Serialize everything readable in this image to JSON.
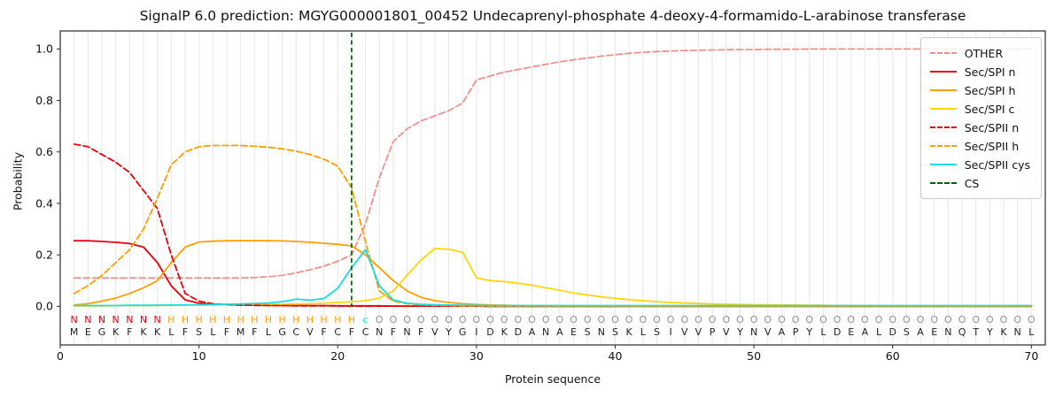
{
  "chart_data": {
    "type": "line",
    "title": "SignalP 6.0 prediction: MGYG000001801_00452 Undecaprenyl-phosphate 4-deoxy-4-formamido-L-arabinose transferase",
    "xlabel": "Protein sequence",
    "ylabel": "Probability",
    "xlim": [
      0,
      71
    ],
    "ylim": [
      -0.15,
      1.07
    ],
    "x_ticks": [
      0,
      10,
      20,
      30,
      40,
      50,
      60,
      70
    ],
    "y_ticks": [
      0.0,
      0.2,
      0.4,
      0.6,
      0.8,
      1.0
    ],
    "grid": "vertical-per-residue",
    "legend_position": "upper right",
    "sequence": "MEGKFKKLFSLFMFLGCVFCFCNFNFVYGIDKDANAESNSKLSIVVPVYNVAPYLDEALDSAENQTYKNL",
    "annotation": "NNNNNNNHHHHHHHHHHHHHHcOOOOOOOOOOOOOOOOOOOOOOOOOOOOOOOOOOOOOOOOOOOOOOOO",
    "annotation_colors": {
      "N": "#e8000d",
      "H": "#ff9f00",
      "c": "#17dddd",
      "O": "#8f8f8f"
    },
    "sequence_color": "#1f1f1f",
    "cs": {
      "label": "CS",
      "position": 21,
      "color": "#006400"
    },
    "style": {
      "grid_color": "#e7e7e7",
      "axis_color": "#2a2a2a",
      "annotation_y": -0.05,
      "sequence_y": -0.098
    },
    "series": [
      {
        "name": "OTHER",
        "color": "#f0908c",
        "dash": true,
        "values": [
          0.11,
          0.11,
          0.11,
          0.11,
          0.11,
          0.11,
          0.11,
          0.11,
          0.11,
          0.11,
          0.11,
          0.11,
          0.11,
          0.112,
          0.115,
          0.12,
          0.13,
          0.142,
          0.156,
          0.175,
          0.2,
          0.32,
          0.5,
          0.64,
          0.69,
          0.72,
          0.74,
          0.76,
          0.79,
          0.88,
          0.895,
          0.91,
          0.92,
          0.93,
          0.94,
          0.95,
          0.958,
          0.965,
          0.972,
          0.978,
          0.983,
          0.987,
          0.99,
          0.992,
          0.994,
          0.995,
          0.996,
          0.997,
          0.998,
          0.998,
          0.999,
          0.999,
          0.999,
          1.0,
          1.0,
          1.0,
          1.0,
          1.0,
          1.0,
          1.0,
          1.0,
          1.0,
          1.0,
          1.0,
          1.0,
          1.0,
          1.0,
          1.0,
          1.0,
          1.0
        ]
      },
      {
        "name": "Sec/SPI n",
        "color": "#e8000d",
        "dash": false,
        "values": [
          0.255,
          0.255,
          0.252,
          0.249,
          0.244,
          0.23,
          0.17,
          0.08,
          0.025,
          0.012,
          0.008,
          0.006,
          0.005,
          0.004,
          0.004,
          0.003,
          0.003,
          0.003,
          0.003,
          0.002,
          0.002,
          0.002,
          0.002,
          0.001,
          0.001,
          0.001,
          0.001,
          0.001,
          0.001,
          0.001,
          0,
          0,
          0,
          0,
          0,
          0,
          0,
          0,
          0,
          0,
          0,
          0,
          0,
          0,
          0,
          0,
          0,
          0,
          0,
          0,
          0,
          0,
          0,
          0,
          0,
          0,
          0,
          0,
          0,
          0,
          0,
          0,
          0,
          0,
          0,
          0,
          0,
          0,
          0,
          0
        ]
      },
      {
        "name": "Sec/SPI h",
        "color": "#ff9f00",
        "dash": false,
        "values": [
          0.005,
          0.01,
          0.02,
          0.032,
          0.05,
          0.072,
          0.1,
          0.17,
          0.23,
          0.25,
          0.253,
          0.255,
          0.255,
          0.255,
          0.255,
          0.254,
          0.252,
          0.249,
          0.245,
          0.241,
          0.235,
          0.2,
          0.15,
          0.1,
          0.06,
          0.035,
          0.022,
          0.015,
          0.01,
          0.007,
          0.005,
          0.004,
          0.003,
          0.002,
          0.002,
          0.001,
          0.001,
          0.001,
          0.001,
          0.001,
          0,
          0,
          0,
          0,
          0,
          0,
          0,
          0,
          0,
          0,
          0,
          0,
          0,
          0,
          0,
          0,
          0,
          0,
          0,
          0,
          0,
          0,
          0,
          0,
          0,
          0,
          0,
          0,
          0,
          0
        ]
      },
      {
        "name": "Sec/SPI c",
        "color": "#ffd60a",
        "dash": false,
        "values": [
          0.002,
          0.002,
          0.002,
          0.003,
          0.003,
          0.003,
          0.004,
          0.004,
          0.005,
          0.005,
          0.005,
          0.006,
          0.006,
          0.007,
          0.008,
          0.008,
          0.009,
          0.01,
          0.012,
          0.015,
          0.018,
          0.022,
          0.032,
          0.06,
          0.12,
          0.18,
          0.225,
          0.222,
          0.21,
          0.11,
          0.1,
          0.096,
          0.09,
          0.082,
          0.072,
          0.062,
          0.052,
          0.044,
          0.037,
          0.031,
          0.026,
          0.022,
          0.018,
          0.015,
          0.013,
          0.011,
          0.009,
          0.008,
          0.007,
          0.006,
          0.006,
          0.005,
          0.005,
          0.004,
          0.004,
          0.003,
          0.003,
          0.003,
          0.002,
          0.002,
          0.002,
          0.002,
          0.002,
          0.002,
          0.002,
          0.002,
          0.002,
          0.002,
          0.002,
          0.002
        ]
      },
      {
        "name": "Sec/SPII n",
        "color": "#e8000d",
        "dash": true,
        "values": [
          0.63,
          0.62,
          0.59,
          0.56,
          0.52,
          0.45,
          0.38,
          0.2,
          0.05,
          0.02,
          0.01,
          0.007,
          0.005,
          0.004,
          0.003,
          0.003,
          0.002,
          0.002,
          0.002,
          0.002,
          0.001,
          0.001,
          0.001,
          0.001,
          0.001,
          0.001,
          0.001,
          0.001,
          0.001,
          0.001,
          0,
          0,
          0,
          0,
          0,
          0,
          0,
          0,
          0,
          0,
          0,
          0,
          0,
          0,
          0,
          0,
          0,
          0,
          0,
          0,
          0,
          0,
          0,
          0,
          0,
          0,
          0,
          0,
          0,
          0,
          0,
          0,
          0,
          0,
          0,
          0,
          0,
          0,
          0,
          0
        ]
      },
      {
        "name": "Sec/SPII h",
        "color": "#ff9f00",
        "dash": true,
        "values": [
          0.05,
          0.08,
          0.12,
          0.17,
          0.22,
          0.3,
          0.42,
          0.55,
          0.6,
          0.62,
          0.625,
          0.625,
          0.625,
          0.622,
          0.618,
          0.612,
          0.603,
          0.59,
          0.572,
          0.545,
          0.46,
          0.25,
          0.06,
          0.02,
          0.01,
          0.006,
          0.004,
          0.003,
          0.002,
          0.002,
          0.001,
          0.001,
          0.001,
          0.001,
          0.001,
          0.001,
          0.001,
          0.001,
          0.001,
          0.001,
          0,
          0,
          0,
          0,
          0,
          0,
          0,
          0,
          0,
          0,
          0,
          0,
          0,
          0,
          0,
          0,
          0,
          0,
          0,
          0,
          0,
          0,
          0,
          0,
          0,
          0,
          0,
          0,
          0,
          0
        ]
      },
      {
        "name": "Sec/SPII cys",
        "color": "#17dddd",
        "dash": false,
        "values": [
          0.003,
          0.003,
          0.003,
          0.003,
          0.004,
          0.004,
          0.004,
          0.005,
          0.005,
          0.006,
          0.007,
          0.008,
          0.009,
          0.011,
          0.013,
          0.018,
          0.028,
          0.024,
          0.03,
          0.07,
          0.15,
          0.22,
          0.08,
          0.025,
          0.012,
          0.008,
          0.006,
          0.005,
          0.004,
          0.004,
          0.003,
          0.003,
          0.003,
          0.003,
          0.003,
          0.003,
          0.003,
          0.003,
          0.003,
          0.003,
          0.003,
          0.003,
          0.003,
          0.003,
          0.003,
          0.003,
          0.003,
          0.003,
          0.003,
          0.003,
          0.003,
          0.003,
          0.003,
          0.003,
          0.003,
          0.003,
          0.003,
          0.003,
          0.003,
          0.003,
          0.003,
          0.003,
          0.003,
          0.003,
          0.003,
          0.003,
          0.003,
          0.003,
          0.003,
          0.003
        ]
      }
    ]
  }
}
